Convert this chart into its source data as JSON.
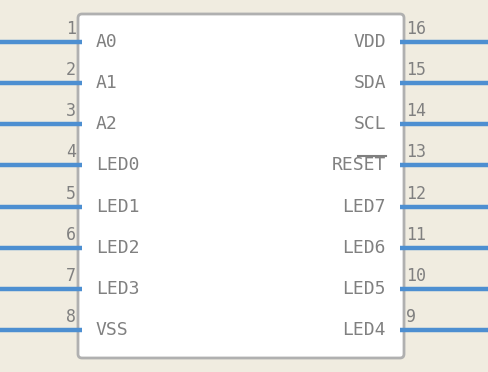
{
  "background_color": "#f0ece0",
  "body_color": "#b0b0b0",
  "body_fill": "#ffffff",
  "pin_color": "#4d8fd1",
  "text_color": "#808080",
  "num_color": "#808080",
  "left_pins": [
    {
      "num": "1",
      "label": "A0"
    },
    {
      "num": "2",
      "label": "A1"
    },
    {
      "num": "3",
      "label": "A2"
    },
    {
      "num": "4",
      "label": "LED0"
    },
    {
      "num": "5",
      "label": "LED1"
    },
    {
      "num": "6",
      "label": "LED2"
    },
    {
      "num": "7",
      "label": "LED3"
    },
    {
      "num": "8",
      "label": "VSS"
    }
  ],
  "right_pins": [
    {
      "num": "16",
      "label": "VDD",
      "overline": false
    },
    {
      "num": "15",
      "label": "SDA",
      "overline": false
    },
    {
      "num": "14",
      "label": "SCL",
      "overline": false
    },
    {
      "num": "13",
      "label": "RESET",
      "overline": true
    },
    {
      "num": "12",
      "label": "LED7",
      "overline": false
    },
    {
      "num": "11",
      "label": "LED6",
      "overline": false
    },
    {
      "num": "10",
      "label": "LED5",
      "overline": false
    },
    {
      "num": "9",
      "label": "LED4",
      "overline": false
    }
  ],
  "label_fontsize": 13,
  "num_fontsize": 12,
  "pin_linewidth": 3.2,
  "body_linewidth": 2.0,
  "font_family": "monospace"
}
